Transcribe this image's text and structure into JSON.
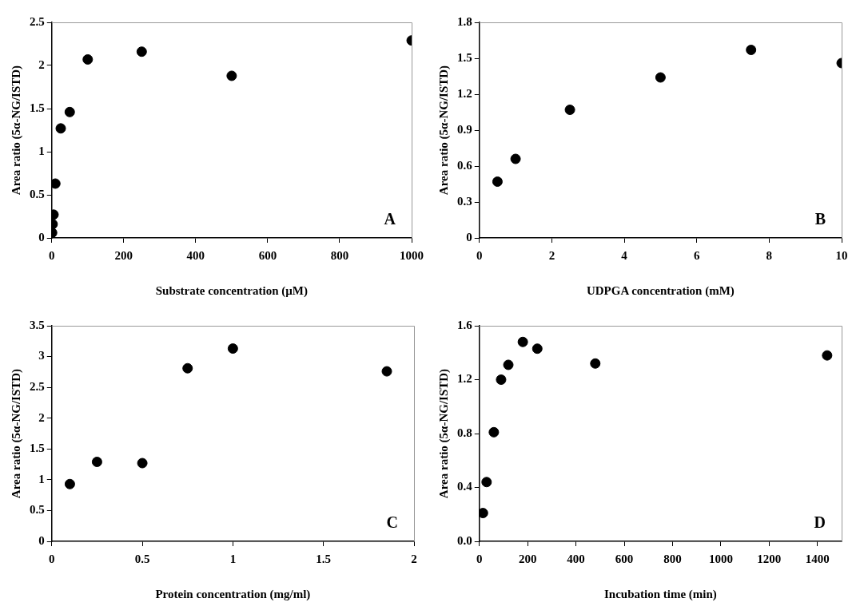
{
  "chart_data": [
    {
      "type": "scatter",
      "xlabel": "Substrate concentration (µM)",
      "ylabel": "Area ratio (5α-NG/ISTD)",
      "annotations": [
        "A"
      ],
      "marker": "circle",
      "grid": false,
      "xlim": [
        0,
        1000
      ],
      "xticks": [
        0,
        200,
        400,
        600,
        800,
        1000
      ],
      "ylim": [
        0,
        2.5
      ],
      "yticks": [
        0,
        0.5,
        1,
        1.5,
        2,
        2.5
      ],
      "series": [
        {
          "color": "#000000",
          "x": [
            1,
            2.5,
            5,
            10,
            25,
            50,
            100,
            250,
            500,
            1000
          ],
          "values": [
            0.06,
            0.16,
            0.27,
            0.63,
            1.27,
            1.46,
            2.07,
            2.16,
            1.88,
            2.29
          ]
        }
      ]
    },
    {
      "type": "scatter",
      "xlabel": "UDPGA concentration (mM)",
      "ylabel": "Area ratio (5α-NG/ISTD)",
      "annotations": [
        "B"
      ],
      "marker": "circle",
      "grid": false,
      "xlim": [
        0,
        10
      ],
      "xticks": [
        0,
        2,
        4,
        6,
        8,
        10
      ],
      "ylim": [
        0,
        1.8
      ],
      "yticks": [
        0,
        0.3,
        0.6,
        0.9,
        1.2,
        1.5,
        1.8
      ],
      "series": [
        {
          "color": "#000000",
          "x": [
            0.5,
            1,
            2.5,
            5,
            7.5,
            10
          ],
          "values": [
            0.47,
            0.66,
            1.07,
            1.34,
            1.57,
            1.46
          ]
        }
      ]
    },
    {
      "type": "scatter",
      "xlabel": "Protein concentration (mg/ml)",
      "ylabel": "Area ratio (5α-NG/ISTD)",
      "annotations": [
        "C"
      ],
      "marker": "circle",
      "grid": false,
      "xlim": [
        0,
        2
      ],
      "xticks": [
        0,
        0.5,
        1,
        1.5,
        2
      ],
      "ylim": [
        0,
        3.5
      ],
      "yticks": [
        0,
        0.5,
        1,
        1.5,
        2,
        2.5,
        3,
        3.5
      ],
      "series": [
        {
          "color": "#000000",
          "x": [
            0.1,
            0.25,
            0.5,
            0.75,
            1,
            1.85
          ],
          "values": [
            0.93,
            1.29,
            1.27,
            2.81,
            3.13,
            2.76
          ]
        }
      ]
    },
    {
      "type": "scatter",
      "xlabel": "Incubation time (min)",
      "ylabel": "Area ratio (5α-NG/ISTD)",
      "annotations": [
        "D"
      ],
      "marker": "circle",
      "grid": false,
      "xlim": [
        0,
        1500
      ],
      "xticks": [
        0,
        200,
        400,
        600,
        800,
        1000,
        1200,
        1400
      ],
      "ylim": [
        0,
        1.6
      ],
      "yticks": [
        {
          "value": 0,
          "label": "0.0"
        },
        {
          "value": 0.4,
          "label": "0.4"
        },
        {
          "value": 0.8,
          "label": "0.8"
        },
        {
          "value": 1.2,
          "label": "1.2"
        },
        {
          "value": 1.6,
          "label": "1.6"
        }
      ],
      "series": [
        {
          "color": "#000000",
          "x": [
            15,
            30,
            60,
            90,
            120,
            180,
            240,
            480,
            1440
          ],
          "values": [
            0.21,
            0.44,
            0.81,
            1.2,
            1.31,
            1.48,
            1.43,
            1.32,
            1.38
          ]
        }
      ]
    }
  ]
}
